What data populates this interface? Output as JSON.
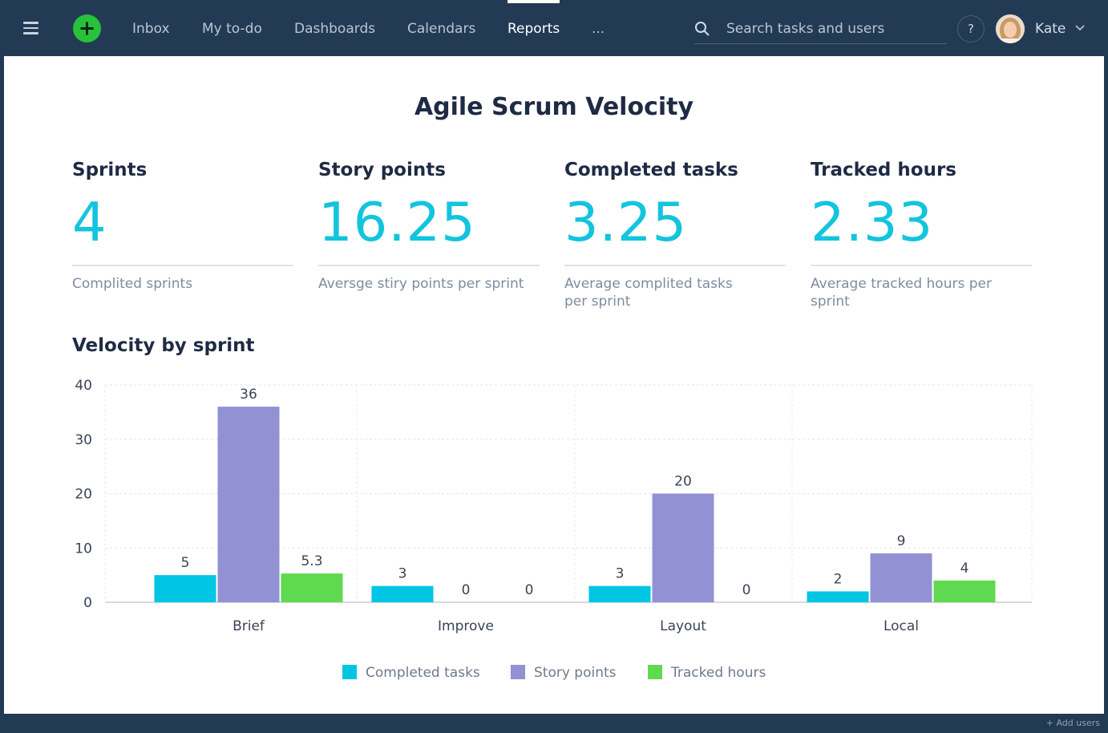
{
  "nav": {
    "items": [
      "Inbox",
      "My to-do",
      "Dashboards",
      "Calendars",
      "Reports",
      "..."
    ],
    "active": "Reports",
    "search_placeholder": "Search tasks and users",
    "help_label": "?",
    "user_name": "Kate"
  },
  "page": {
    "title": "Agile Scrum Velocity"
  },
  "metrics": [
    {
      "label": "Sprints",
      "value": "4",
      "description": "Complited sprints"
    },
    {
      "label": "Story points",
      "value": "16.25",
      "description": "Aversge stiry points per sprint"
    },
    {
      "label": "Completed tasks",
      "value": "3.25",
      "description": "Average complited tasks per sprint"
    },
    {
      "label": "Tracked hours",
      "value": "2.33",
      "description": "Average tracked hours per sprint"
    }
  ],
  "section": {
    "title": "Velocity by sprint"
  },
  "colors": {
    "completed": "#00c5e3",
    "story": "#9191d3",
    "tracked": "#5fd94f",
    "accent": "#13c4de",
    "nav_bg": "#233a55"
  },
  "chart_data": {
    "type": "bar",
    "title": "Velocity by sprint",
    "xlabel": "",
    "ylabel": "",
    "categories": [
      "Brief",
      "Improve",
      "Layout",
      "Local"
    ],
    "series": [
      {
        "name": "Completed tasks",
        "values": [
          5,
          3,
          3,
          2
        ],
        "labels": [
          "5",
          "3",
          "3",
          "2"
        ]
      },
      {
        "name": "Story points",
        "values": [
          36,
          0,
          20,
          9
        ],
        "labels": [
          "36",
          "0",
          "20",
          "9"
        ]
      },
      {
        "name": "Tracked hours",
        "values": [
          5.3,
          0,
          0,
          4
        ],
        "labels": [
          "5.3",
          "0",
          "0",
          "4"
        ]
      }
    ],
    "ylim": [
      0,
      40
    ],
    "yticks": [
      0,
      10,
      20,
      30,
      40
    ],
    "grid": true,
    "legend_position": "bottom-center"
  },
  "footer": {
    "add_users": "+ Add users"
  }
}
